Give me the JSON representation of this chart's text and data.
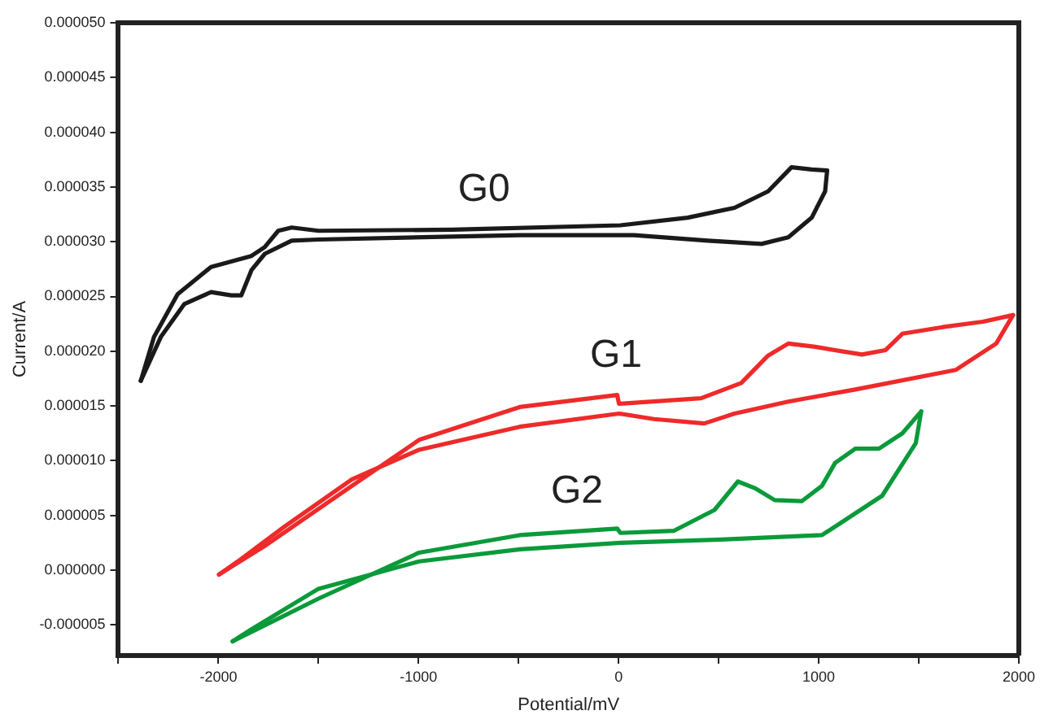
{
  "chart_data": {
    "type": "line",
    "xlabel": "Potential/mV",
    "ylabel": "Current/A",
    "xlim": [
      -2500,
      2000
    ],
    "xticks": [
      {
        "value": -2500,
        "label": null
      },
      -2000,
      {
        "value": -1500,
        "label": null
      },
      -1000,
      {
        "value": -500,
        "label": null
      },
      0,
      {
        "value": 500,
        "label": null
      },
      1000,
      {
        "value": 1500,
        "label": null
      },
      2000
    ],
    "ylim": [
      -7.8e-06,
      5e-05
    ],
    "yticks": [
      {
        "value": -5e-06,
        "label": "-0.000005"
      },
      {
        "value": 0,
        "label": "0.000000"
      },
      {
        "value": 5e-06,
        "label": "0.000005"
      },
      {
        "value": 1e-05,
        "label": "0.000010"
      },
      {
        "value": 1.5e-05,
        "label": "0.000015"
      },
      {
        "value": 2e-05,
        "label": "0.000020"
      },
      {
        "value": 2.5e-05,
        "label": "0.000025"
      },
      {
        "value": 3e-05,
        "label": "0.000030"
      },
      {
        "value": 3.5e-05,
        "label": "0.000035"
      },
      {
        "value": 4e-05,
        "label": "0.000040"
      },
      {
        "value": 4.5e-05,
        "label": "0.000045"
      },
      {
        "value": 5e-05,
        "label": "0.000050"
      }
    ],
    "grid": false,
    "legend": false,
    "marker": "none",
    "line_style": "solid",
    "series": [
      {
        "name": "G0",
        "color": "#1a1a1a",
        "x": [
          -2388,
          -2322,
          -2204,
          -2037,
          -1835,
          -1769,
          -1701,
          -1634,
          -1500,
          -830,
          8,
          345,
          579,
          747,
          864,
          965,
          1042
        ],
        "values": [
          1.73e-05,
          2.13e-05,
          2.52e-05,
          2.77e-05,
          2.87e-05,
          2.95e-05,
          3.1e-05,
          3.13e-05,
          3.1e-05,
          3.11e-05,
          3.15e-05,
          3.22e-05,
          3.31e-05,
          3.46e-05,
          3.68e-05,
          3.66e-05,
          3.65e-05
        ]
      },
      {
        "color": "#1a1a1a",
        "x": [
          -2388,
          -2288,
          -2171,
          -2037,
          -1936,
          -1886,
          -1835,
          -1768,
          -1634,
          -1500,
          -494,
          77,
          445,
          714,
          848,
          965,
          1032,
          1042
        ],
        "values": [
          1.73e-05,
          2.13e-05,
          2.43e-05,
          2.54e-05,
          2.51e-05,
          2.51e-05,
          2.74e-05,
          2.89e-05,
          3.01e-05,
          3.02e-05,
          3.06e-05,
          3.06e-05,
          3.01e-05,
          2.98e-05,
          3.04e-05,
          3.22e-05,
          3.46e-05,
          3.65e-05
        ]
      },
      {
        "name": "G1",
        "color": "#ee2a2a",
        "x": [
          -1997,
          -1769,
          -1333,
          -997,
          -494,
          -7,
          2,
          412,
          613,
          747,
          848,
          982,
          1216,
          1334,
          1418,
          1619,
          1821,
          1971
        ],
        "values": [
          -4e-07,
          2.2e-06,
          7.7e-06,
          1.19e-05,
          1.49e-05,
          1.6e-05,
          1.52e-05,
          1.57e-05,
          1.71e-05,
          1.96e-05,
          2.07e-05,
          2.04e-05,
          1.97e-05,
          2.01e-05,
          2.16e-05,
          2.22e-05,
          2.27e-05,
          2.33e-05
        ]
      },
      {
        "color": "#ee2a2a",
        "x": [
          -1997,
          -1903,
          -1668,
          -1333,
          -997,
          -494,
          2,
          177,
          428,
          579,
          848,
          1183,
          1686,
          1887,
          1971
        ],
        "values": [
          -4e-07,
          8e-07,
          4e-06,
          8.3e-06,
          1.1e-05,
          1.31e-05,
          1.43e-05,
          1.38e-05,
          1.34e-05,
          1.43e-05,
          1.54e-05,
          1.65e-05,
          1.83e-05,
          2.07e-05,
          2.33e-05
        ]
      },
      {
        "name": "G2",
        "color": "#0a9a3a",
        "x": [
          -1929,
          -1500,
          -997,
          -494,
          -7,
          9,
          277,
          479,
          596,
          680,
          780,
          915,
          1016,
          1082,
          1183,
          1301,
          1418,
          1512
        ],
        "values": [
          -6.5e-06,
          -2.6e-06,
          1.6e-06,
          3.2e-06,
          3.8e-06,
          3.4e-06,
          3.6e-06,
          5.5e-06,
          8.1e-06,
          7.5e-06,
          6.4e-06,
          6.3e-06,
          7.7e-06,
          9.8e-06,
          1.11e-05,
          1.11e-05,
          1.25e-05,
          1.45e-05
        ]
      },
      {
        "color": "#0a9a3a",
        "x": [
          -1929,
          -1835,
          -1500,
          -997,
          -494,
          9,
          512,
          1016,
          1317,
          1485,
          1512
        ],
        "values": [
          -6.5e-06,
          -5.4e-06,
          -1.7e-06,
          8e-07,
          1.9e-06,
          2.5e-06,
          2.8e-06,
          3.2e-06,
          6.8e-06,
          1.16e-05,
          1.45e-05
        ]
      }
    ]
  }
}
